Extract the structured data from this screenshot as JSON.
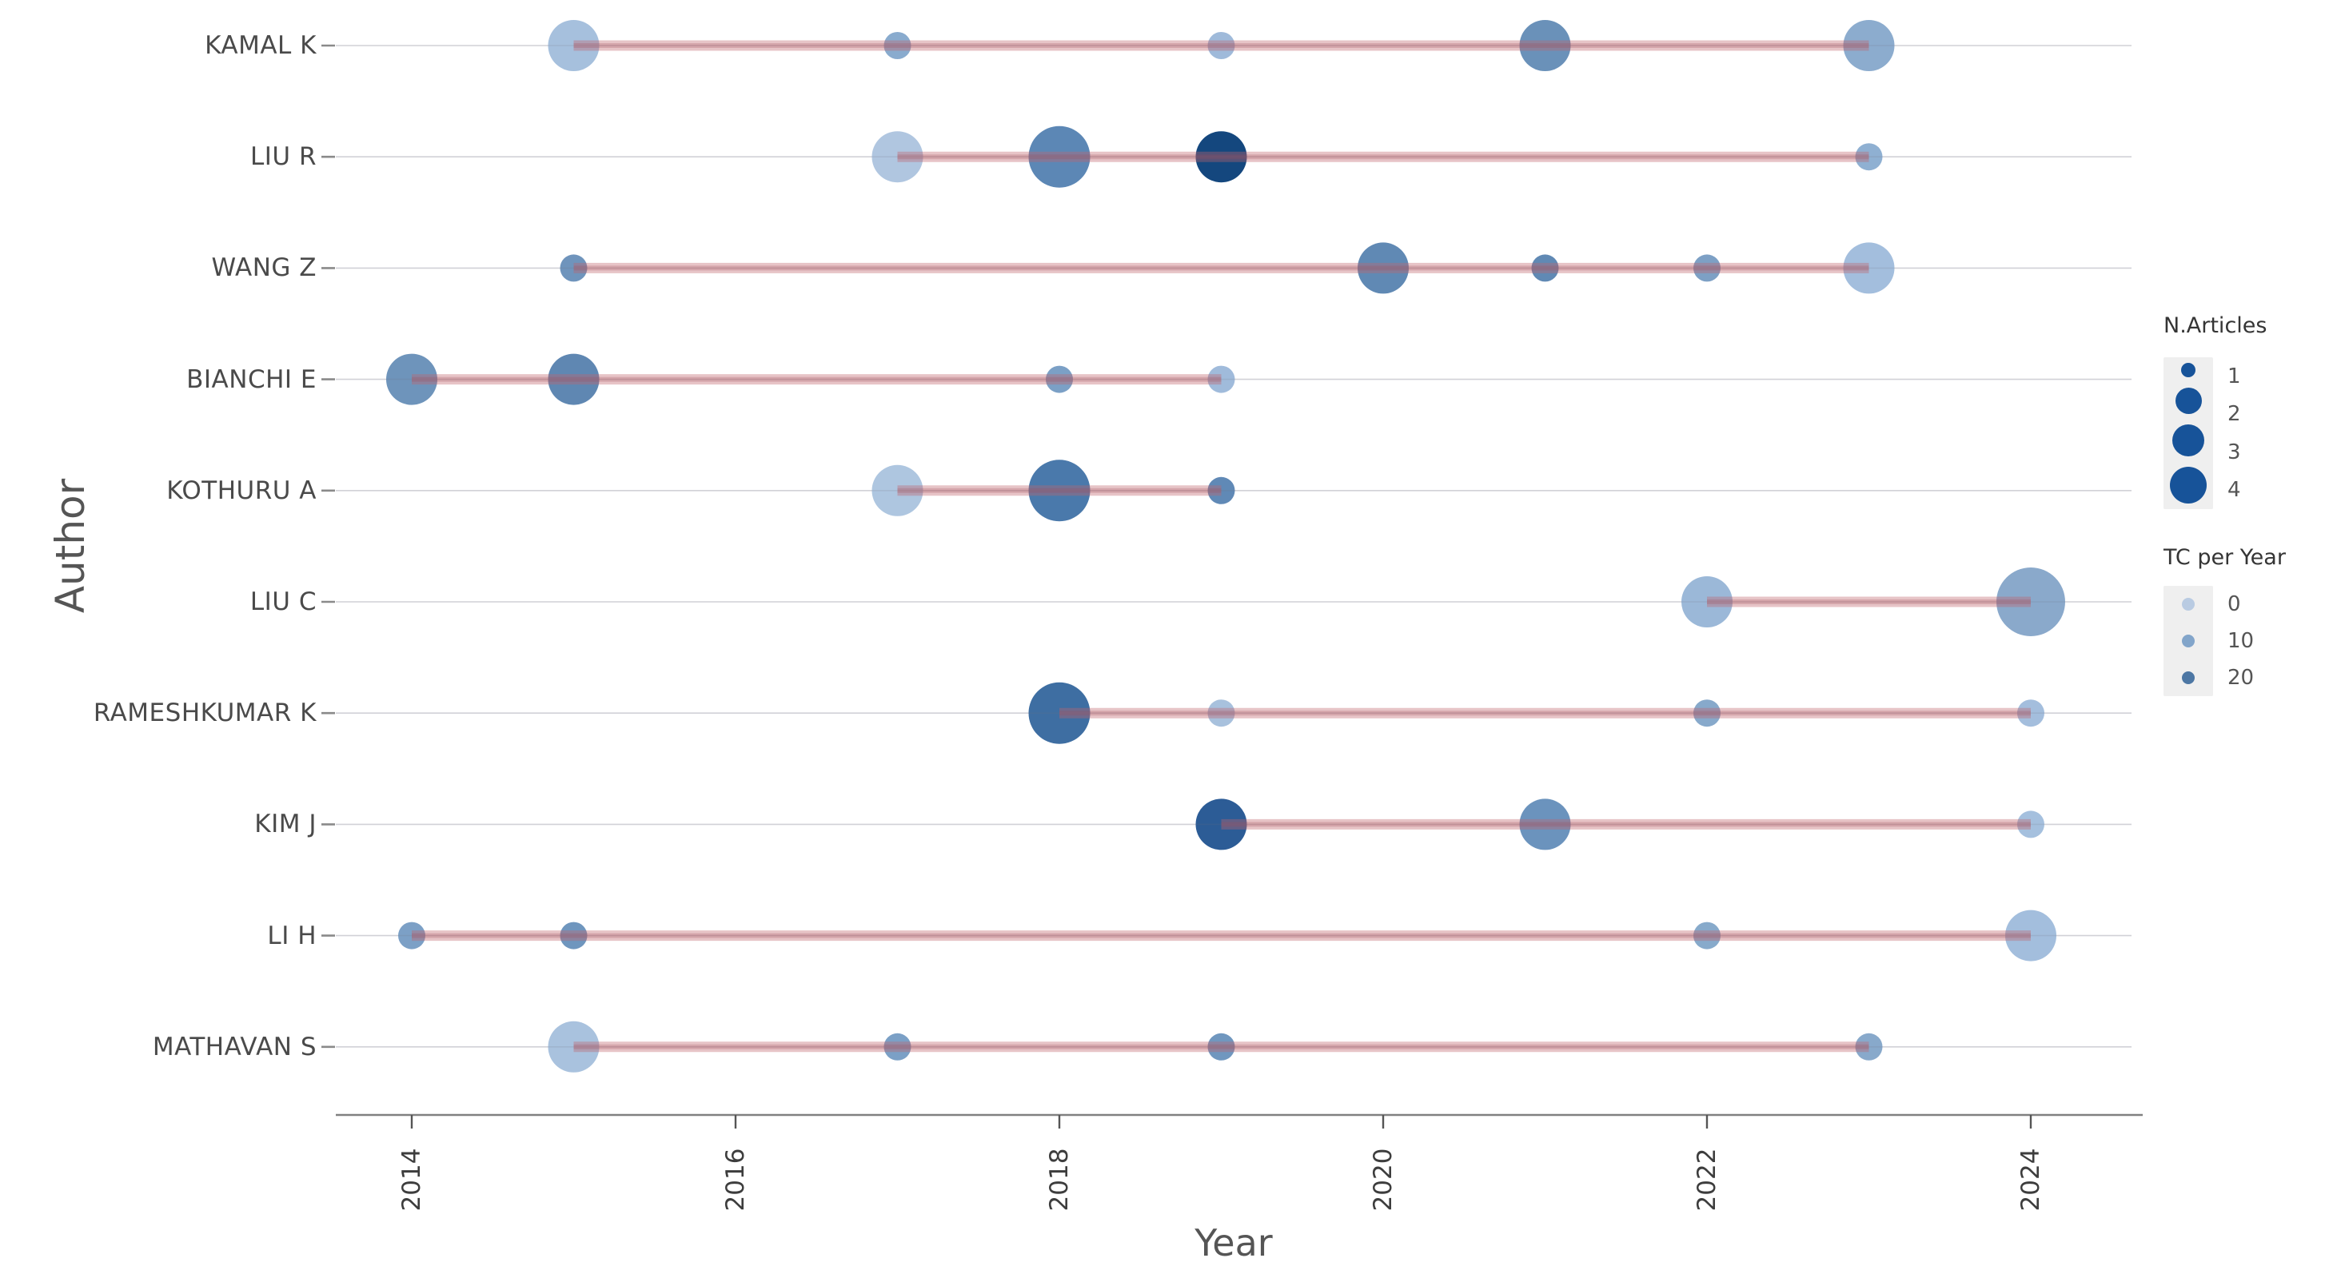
{
  "chart_data": {
    "type": "scatter",
    "variant": "authors-production-over-time",
    "title": "",
    "xlabel": "Year",
    "ylabel": "Author",
    "x_ticks": [
      2014,
      2016,
      2018,
      2020,
      2022,
      2024
    ],
    "x_tick_labels": [
      "2014",
      "2016",
      "2018",
      "2020",
      "2022",
      "2024"
    ],
    "x_range": [
      2013.5,
      2024.6
    ],
    "grid": "horizontal-only",
    "legend_position": "right",
    "background": "#ffffff",
    "line_style": {
      "color": "#c0656c",
      "opacity": 0.38,
      "width": 13,
      "core_color": "#a04d56",
      "core_opacity": 0.25,
      "core_width": 6
    },
    "series": [
      {
        "name": "KAMAL K",
        "line_span": [
          2015,
          2023
        ],
        "points": [
          {
            "year": 2015,
            "n_articles": 2,
            "tc_per_year": 3,
            "color": "#a6c0dd"
          },
          {
            "year": 2017,
            "n_articles": 1,
            "tc_per_year": 8,
            "color": "#89abce"
          },
          {
            "year": 2019,
            "n_articles": 1,
            "tc_per_year": 4,
            "color": "#9fbada"
          },
          {
            "year": 2021,
            "n_articles": 2,
            "tc_per_year": 13,
            "color": "#6a91b9"
          },
          {
            "year": 2023,
            "n_articles": 2,
            "tc_per_year": 7,
            "color": "#8cacce"
          }
        ]
      },
      {
        "name": "LIU R",
        "line_span": [
          2017,
          2023
        ],
        "points": [
          {
            "year": 2017,
            "n_articles": 2,
            "tc_per_year": 2,
            "color": "#b0c6e0"
          },
          {
            "year": 2018,
            "n_articles": 3,
            "tc_per_year": 15,
            "color": "#5c87b5"
          },
          {
            "year": 2019,
            "n_articles": 2,
            "tc_per_year": 30,
            "color": "#14477e"
          },
          {
            "year": 2023,
            "n_articles": 1,
            "tc_per_year": 7,
            "color": "#8fb0d2"
          }
        ]
      },
      {
        "name": "WANG Z",
        "line_span": [
          2015,
          2023
        ],
        "points": [
          {
            "year": 2015,
            "n_articles": 1,
            "tc_per_year": 13,
            "color": "#6f94bc"
          },
          {
            "year": 2020,
            "n_articles": 2,
            "tc_per_year": 14,
            "color": "#6089b4"
          },
          {
            "year": 2021,
            "n_articles": 1,
            "tc_per_year": 14,
            "color": "#6089b4"
          },
          {
            "year": 2022,
            "n_articles": 1,
            "tc_per_year": 10,
            "color": "#7da0c5"
          },
          {
            "year": 2023,
            "n_articles": 2,
            "tc_per_year": 3,
            "color": "#a3bedd"
          }
        ]
      },
      {
        "name": "BIANCHI E",
        "line_span": [
          2014,
          2019
        ],
        "points": [
          {
            "year": 2014,
            "n_articles": 2,
            "tc_per_year": 13,
            "color": "#6e94bb"
          },
          {
            "year": 2015,
            "n_articles": 2,
            "tc_per_year": 15,
            "color": "#5f87b2"
          },
          {
            "year": 2018,
            "n_articles": 1,
            "tc_per_year": 10,
            "color": "#7ba0c6"
          },
          {
            "year": 2019,
            "n_articles": 1,
            "tc_per_year": 4,
            "color": "#a0bbdb"
          }
        ]
      },
      {
        "name": "KOTHURU A",
        "line_span": [
          2017,
          2019
        ],
        "points": [
          {
            "year": 2017,
            "n_articles": 2,
            "tc_per_year": 2,
            "color": "#aec6e0"
          },
          {
            "year": 2018,
            "n_articles": 3,
            "tc_per_year": 18,
            "color": "#4a79ab"
          },
          {
            "year": 2019,
            "n_articles": 1,
            "tc_per_year": 14,
            "color": "#6089b6"
          }
        ]
      },
      {
        "name": "LIU C",
        "line_span": [
          2022,
          2024
        ],
        "points": [
          {
            "year": 2022,
            "n_articles": 2,
            "tc_per_year": 5,
            "color": "#9bb8d8"
          },
          {
            "year": 2024,
            "n_articles": 4,
            "tc_per_year": 7,
            "color": "#8aa9cb"
          }
        ]
      },
      {
        "name": "RAMESHKUMAR K",
        "line_span": [
          2018,
          2024
        ],
        "points": [
          {
            "year": 2018,
            "n_articles": 3,
            "tc_per_year": 21,
            "color": "#3e6ea2"
          },
          {
            "year": 2019,
            "n_articles": 1,
            "tc_per_year": 3,
            "color": "#a8c1dd"
          },
          {
            "year": 2022,
            "n_articles": 1,
            "tc_per_year": 8,
            "color": "#87a9cb"
          },
          {
            "year": 2024,
            "n_articles": 1,
            "tc_per_year": 3,
            "color": "#a4bedd"
          }
        ]
      },
      {
        "name": "KIM J",
        "line_span": [
          2019,
          2024
        ],
        "points": [
          {
            "year": 2019,
            "n_articles": 2,
            "tc_per_year": 25,
            "color": "#2c5c96"
          },
          {
            "year": 2021,
            "n_articles": 2,
            "tc_per_year": 13,
            "color": "#6b93bd"
          },
          {
            "year": 2024,
            "n_articles": 1,
            "tc_per_year": 3,
            "color": "#a5c0de"
          }
        ]
      },
      {
        "name": "LI H",
        "line_span": [
          2014,
          2024
        ],
        "points": [
          {
            "year": 2014,
            "n_articles": 1,
            "tc_per_year": 10,
            "color": "#7ca0c6"
          },
          {
            "year": 2015,
            "n_articles": 1,
            "tc_per_year": 12,
            "color": "#6f96be"
          },
          {
            "year": 2022,
            "n_articles": 1,
            "tc_per_year": 8,
            "color": "#87aacb"
          },
          {
            "year": 2024,
            "n_articles": 2,
            "tc_per_year": 3,
            "color": "#a3bedd"
          }
        ]
      },
      {
        "name": "MATHAVAN S",
        "line_span": [
          2015,
          2023
        ],
        "points": [
          {
            "year": 2015,
            "n_articles": 2,
            "tc_per_year": 3,
            "color": "#a9c2de"
          },
          {
            "year": 2017,
            "n_articles": 1,
            "tc_per_year": 10,
            "color": "#7ba0c6"
          },
          {
            "year": 2019,
            "n_articles": 1,
            "tc_per_year": 10,
            "color": "#7097bf"
          },
          {
            "year": 2023,
            "n_articles": 1,
            "tc_per_year": 7,
            "color": "#88a9cb"
          }
        ]
      }
    ]
  },
  "legend": {
    "size": {
      "title": "N.Articles",
      "dot_color": "#175399",
      "items": [
        {
          "label": "1",
          "n": 1
        },
        {
          "label": "2",
          "n": 2
        },
        {
          "label": "3",
          "n": 3
        },
        {
          "label": "4",
          "n": 4
        }
      ]
    },
    "color": {
      "title": "TC per Year",
      "items": [
        {
          "label": "0",
          "hex": "#b9cbe2"
        },
        {
          "label": "10",
          "hex": "#82a5ca"
        },
        {
          "label": "20",
          "hex": "#4d77a4"
        }
      ]
    }
  },
  "colors": {
    "grid_line": "#e4e4e9",
    "axis_line": "#808080",
    "tick_mark": "#555555",
    "author_label": "#4a4a4a",
    "legend_key_bg": "#efefef"
  }
}
